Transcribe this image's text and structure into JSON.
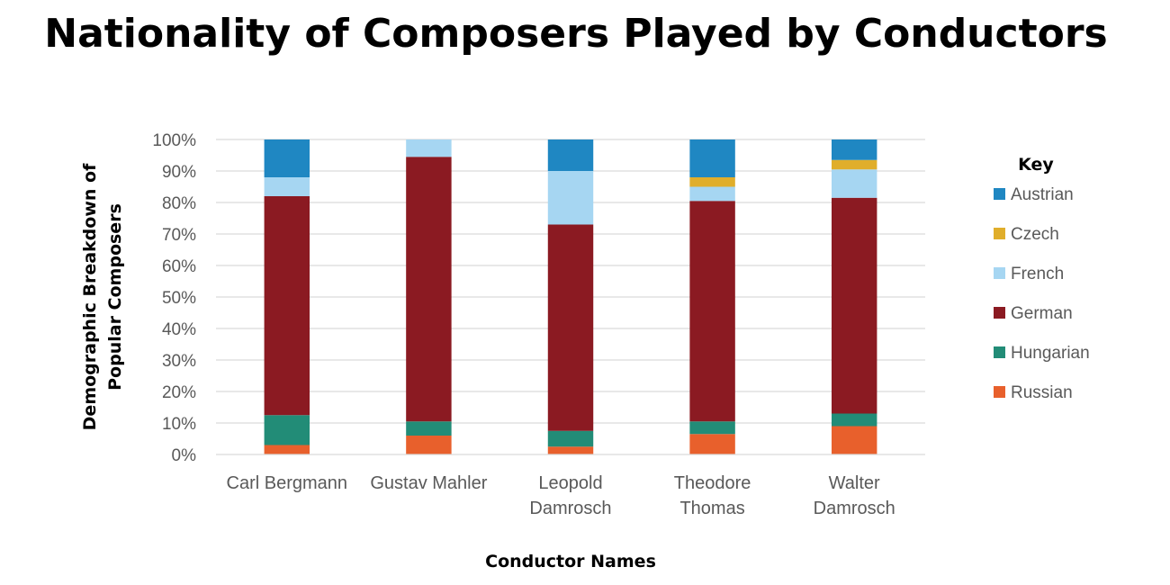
{
  "chart_data": {
    "type": "bar",
    "stacked": true,
    "title": "Nationality of Composers Played by Conductors",
    "xlabel": "Conductor Names",
    "ylabel": [
      "Demographic Breakdown of",
      "Popular Composers"
    ],
    "ylim": [
      0,
      100
    ],
    "yticks": [
      "0%",
      "10%",
      "20%",
      "30%",
      "40%",
      "50%",
      "60%",
      "70%",
      "80%",
      "90%",
      "100%"
    ],
    "grid": true,
    "legend_title": "Key",
    "legend_position": "right",
    "categories": [
      [
        "Carl Bergmann"
      ],
      [
        "Gustav Mahler"
      ],
      [
        "Leopold",
        "Damrosch"
      ],
      [
        "Theodore",
        "Thomas"
      ],
      [
        "Walter",
        "Damrosch"
      ]
    ],
    "series": [
      {
        "name": "Russian",
        "color": "#E8602C",
        "values": [
          3,
          6,
          2.5,
          6.5,
          9
        ]
      },
      {
        "name": "Hungarian",
        "color": "#228C77",
        "values": [
          9.5,
          4.5,
          5,
          4,
          4
        ]
      },
      {
        "name": "German",
        "color": "#8B1A22",
        "values": [
          69.5,
          84,
          65.5,
          70,
          68.5
        ]
      },
      {
        "name": "French",
        "color": "#A6D6F2",
        "values": [
          6,
          5.5,
          17,
          4.5,
          9
        ]
      },
      {
        "name": "Czech",
        "color": "#E0AE2B",
        "values": [
          0,
          0,
          0,
          3,
          3
        ]
      },
      {
        "name": "Austrian",
        "color": "#1F87C2",
        "values": [
          12,
          0,
          10,
          12,
          6.5
        ]
      }
    ],
    "legend_order": [
      "Austrian",
      "Czech",
      "French",
      "German",
      "Hungarian",
      "Russian"
    ],
    "gridline_color": "#d9d9d9"
  }
}
